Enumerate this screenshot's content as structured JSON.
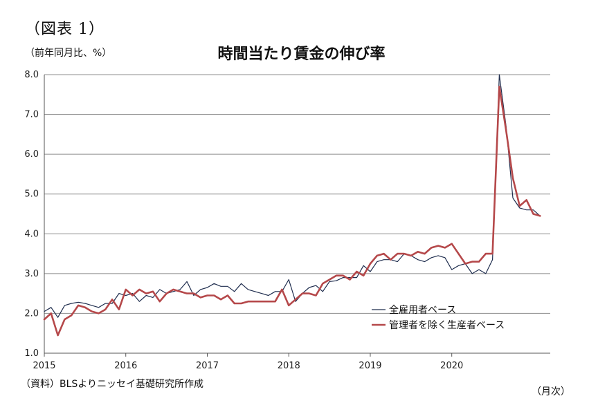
{
  "figure_label": "（図表 1）",
  "unit_label": "（前年同月比、%）",
  "source": "（資料）BLSよりニッセイ基礎研究所作成",
  "x_unit": "（月次）",
  "colors": {
    "series_all": "#1f2d4e",
    "series_nonsup": "#b5484a",
    "grid": "#8c8c8c",
    "axis": "#555555"
  },
  "chart_data": {
    "type": "line",
    "title": "時間当たり賃金の伸び率",
    "ylabel": "（前年同月比、%）",
    "xlabel": "（月次）",
    "ylim": [
      1.0,
      8.0
    ],
    "yticks": [
      "1.0",
      "2.0",
      "3.0",
      "4.0",
      "5.0",
      "6.0",
      "7.0",
      "8.0"
    ],
    "xticks": [
      "2015",
      "2016",
      "2017",
      "2018",
      "2019",
      "2020"
    ],
    "grid": true,
    "legend_position": "bottom-right",
    "x_start": "2015-01",
    "x_frequency": "monthly",
    "series": [
      {
        "name": "全雇用者ベース",
        "values": [
          2.05,
          2.15,
          1.9,
          2.2,
          2.25,
          2.28,
          2.25,
          2.2,
          2.15,
          2.25,
          2.25,
          2.5,
          2.45,
          2.5,
          2.3,
          2.45,
          2.4,
          2.6,
          2.5,
          2.55,
          2.6,
          2.8,
          2.45,
          2.6,
          2.65,
          2.75,
          2.68,
          2.68,
          2.55,
          2.75,
          2.6,
          2.55,
          2.5,
          2.45,
          2.55,
          2.55,
          2.85,
          2.3,
          2.5,
          2.65,
          2.7,
          2.55,
          2.8,
          2.82,
          2.9,
          2.9,
          2.9,
          3.2,
          3.05,
          3.3,
          3.35,
          3.35,
          3.3,
          3.5,
          3.45,
          3.35,
          3.3,
          3.4,
          3.45,
          3.4,
          3.1,
          3.2,
          3.25,
          3.0,
          3.1,
          3.0,
          3.35,
          8.0,
          6.7,
          4.9,
          4.65,
          4.6,
          4.6,
          4.45
        ]
      },
      {
        "name": "管理者を除く生産者ベース",
        "values": [
          1.85,
          2.0,
          1.45,
          1.85,
          1.95,
          2.2,
          2.15,
          2.05,
          2.0,
          2.1,
          2.35,
          2.1,
          2.6,
          2.45,
          2.6,
          2.5,
          2.55,
          2.3,
          2.5,
          2.6,
          2.55,
          2.5,
          2.5,
          2.4,
          2.45,
          2.45,
          2.35,
          2.45,
          2.25,
          2.25,
          2.3,
          2.3,
          2.3,
          2.3,
          2.3,
          2.6,
          2.2,
          2.35,
          2.5,
          2.5,
          2.45,
          2.75,
          2.85,
          2.95,
          2.95,
          2.85,
          3.05,
          2.95,
          3.25,
          3.45,
          3.5,
          3.35,
          3.5,
          3.5,
          3.45,
          3.55,
          3.5,
          3.65,
          3.7,
          3.65,
          3.75,
          3.5,
          3.25,
          3.3,
          3.3,
          3.5,
          3.5,
          7.7,
          6.6,
          5.4,
          4.7,
          4.85,
          4.5,
          4.45
        ]
      }
    ]
  }
}
